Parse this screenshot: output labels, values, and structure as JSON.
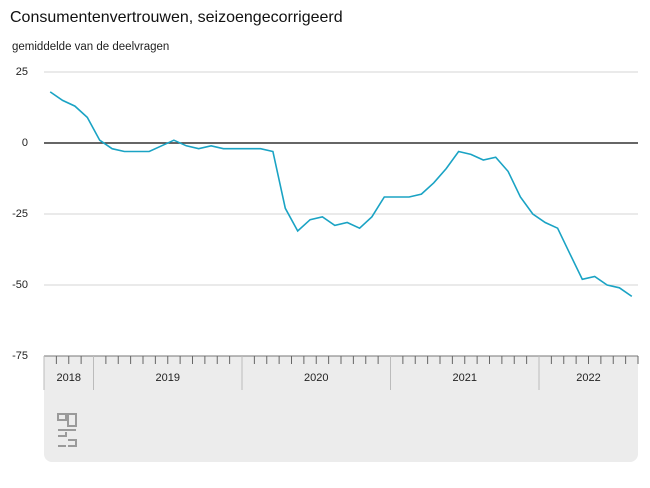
{
  "chart_data": {
    "type": "line",
    "title": "Consumentenvertrouwen, seizoengecorrigeerd",
    "y_label": "gemiddelde van de deelvragen",
    "categories": [
      "2018",
      "2018",
      "2018",
      "2018",
      "2019",
      "2019",
      "2019",
      "2019",
      "2019",
      "2019",
      "2019",
      "2019",
      "2019",
      "2019",
      "2019",
      "2019",
      "2020",
      "2020",
      "2020",
      "2020",
      "2020",
      "2020",
      "2020",
      "2020",
      "2020",
      "2020",
      "2020",
      "2020",
      "2021",
      "2021",
      "2021",
      "2021",
      "2021",
      "2021",
      "2021",
      "2021",
      "2021",
      "2021",
      "2021",
      "2021",
      "2022",
      "2022",
      "2022",
      "2022",
      "2022",
      "2022",
      "2022",
      "2022"
    ],
    "values": [
      18,
      15,
      13,
      9,
      1,
      -2,
      -3,
      -3,
      -3,
      -1,
      1,
      -1,
      -2,
      -1,
      -2,
      -2,
      -2,
      -2,
      -3,
      -23,
      -31,
      -27,
      -26,
      -29,
      -28,
      -30,
      -26,
      -19,
      -19,
      -19,
      -18,
      -14,
      -9,
      -3,
      -4,
      -6,
      -5,
      -10,
      -19,
      -25,
      -28,
      -30,
      -39,
      -48,
      -47,
      -50,
      -51,
      -54
    ],
    "color": "#1aa3c4",
    "ylim": [
      -75,
      25
    ],
    "yticks": [
      -75,
      -50,
      -25,
      0,
      25
    ],
    "grid": true
  }
}
